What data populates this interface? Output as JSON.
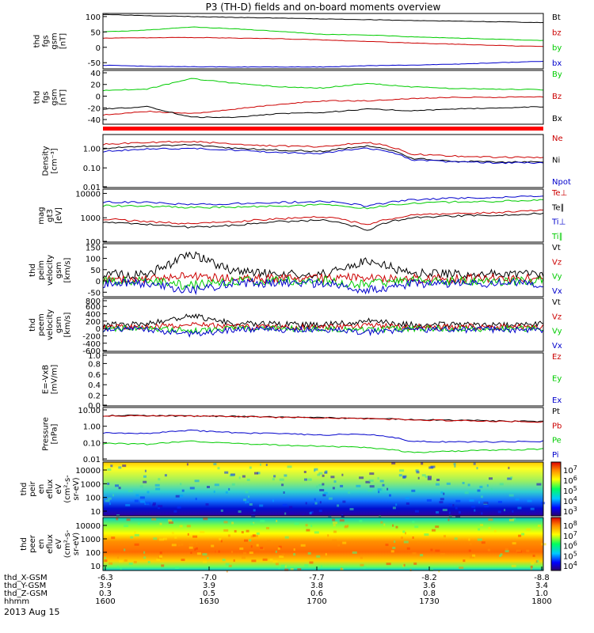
{
  "title": "P3 (TH-D) fields and on-board moments overview",
  "date_label": "2013 Aug 15",
  "chart_data": [
    {
      "type": "line",
      "ylabel": [
        "thd",
        "fgs",
        "gsm",
        "[nT]"
      ],
      "yticks": [
        100,
        50,
        0,
        -50
      ],
      "ylim": [
        -70,
        110
      ],
      "series": [
        {
          "name": "Bt",
          "color": "#000000",
          "values": [
            107,
            103,
            100,
            97,
            95,
            92,
            90,
            87,
            85,
            83,
            80
          ]
        },
        {
          "name": "bz",
          "color": "#cc0000",
          "values": [
            30,
            31,
            32,
            30,
            28,
            24,
            19,
            14,
            10,
            6,
            2
          ]
        },
        {
          "name": "by",
          "color": "#00cc00",
          "values": [
            50,
            56,
            66,
            60,
            52,
            42,
            40,
            34,
            30,
            26,
            22
          ]
        },
        {
          "name": "bx",
          "color": "#0000cc",
          "values": [
            -58,
            -62,
            -63,
            -64,
            -64,
            -64,
            -60,
            -58,
            -55,
            -50,
            -46
          ]
        }
      ]
    },
    {
      "type": "line",
      "ylabel": [
        "thd",
        "fgs",
        "gsm",
        "[nT]"
      ],
      "yticks": [
        40,
        20,
        0,
        -20,
        -40
      ],
      "ylim": [
        -48,
        44
      ],
      "series": [
        {
          "name": "By",
          "color": "#00cc00",
          "values": [
            10,
            12,
            30,
            22,
            16,
            14,
            22,
            16,
            13,
            12,
            11
          ]
        },
        {
          "name": "Bz",
          "color": "#cc0000",
          "values": [
            -32,
            -26,
            -30,
            -22,
            -14,
            -8,
            -8,
            -4,
            -2,
            -2,
            -1
          ]
        },
        {
          "name": "Bx",
          "color": "#000000",
          "values": [
            -22,
            -18,
            -36,
            -36,
            -30,
            -28,
            -22,
            -25,
            -22,
            -20,
            -18
          ]
        }
      ]
    },
    {
      "type": "line",
      "scale": "log",
      "ylabel": [
        "Density",
        "[cm^-3]"
      ],
      "yticks": [
        "1.00",
        "0.10",
        "0.01"
      ],
      "ylim": [
        0.01,
        5
      ],
      "series": [
        {
          "name": "Ne",
          "color": "#cc0000",
          "values": [
            1.6,
            2.0,
            2.2,
            1.6,
            1.3,
            1.2,
            2.0,
            0.5,
            0.4,
            0.35,
            0.35
          ]
        },
        {
          "name": "Ni",
          "color": "#000000",
          "values": [
            1.0,
            1.3,
            1.5,
            1.0,
            0.8,
            0.7,
            1.3,
            0.3,
            0.22,
            0.2,
            0.2
          ]
        },
        {
          "name": "Npot",
          "color": "#0000cc",
          "values": [
            0.7,
            0.9,
            1.0,
            0.8,
            0.6,
            0.55,
            1.0,
            0.25,
            0.2,
            0.18,
            0.18
          ]
        }
      ]
    },
    {
      "type": "line",
      "scale": "log",
      "ylabel": [
        "mag",
        "gt3",
        "[eV]"
      ],
      "yticks": [
        "10000",
        "1000",
        "100"
      ],
      "ylim": [
        100,
        15000
      ],
      "series": [
        {
          "name": "Te⊥",
          "color": "#cc0000",
          "values": [
            900,
            700,
            550,
            700,
            900,
            1100,
            500,
            1300,
            1500,
            1700,
            2000
          ]
        },
        {
          "name": "Te∥",
          "color": "#000000",
          "values": [
            700,
            550,
            400,
            500,
            700,
            800,
            300,
            1000,
            1200,
            1300,
            1500
          ]
        },
        {
          "name": "Ti⊥",
          "color": "#0000cc",
          "values": [
            4500,
            4200,
            3500,
            3800,
            4200,
            4800,
            3000,
            5500,
            6500,
            7000,
            7500
          ]
        },
        {
          "name": "Ti∥",
          "color": "#00cc00",
          "values": [
            3200,
            3000,
            2600,
            2800,
            3000,
            3400,
            2500,
            4000,
            4500,
            4800,
            5200
          ]
        }
      ]
    },
    {
      "type": "line",
      "ylabel": [
        "thd",
        "peim",
        "velocity",
        "gsm",
        "[km/s]"
      ],
      "yticks": [
        150,
        100,
        50,
        0,
        -50
      ],
      "ylim": [
        -70,
        165
      ],
      "series": [
        {
          "name": "Vt",
          "color": "#000000",
          "values": [
            30,
            28,
            120,
            40,
            30,
            30,
            90,
            35,
            30,
            32,
            30
          ]
        },
        {
          "name": "Vz",
          "color": "#cc0000",
          "values": [
            10,
            12,
            20,
            8,
            10,
            12,
            18,
            10,
            10,
            12,
            10
          ]
        },
        {
          "name": "Vy",
          "color": "#00cc00",
          "values": [
            0,
            -2,
            -20,
            0,
            2,
            0,
            -15,
            0,
            0,
            -2,
            0
          ]
        },
        {
          "name": "Vx",
          "color": "#0000cc",
          "values": [
            -10,
            -12,
            -40,
            -10,
            -8,
            -10,
            -40,
            -12,
            -10,
            -12,
            -10
          ]
        }
      ]
    },
    {
      "type": "line",
      "ylabel": [
        "thd",
        "peem",
        "velocity",
        "gsm",
        "[km/s]"
      ],
      "yticks": [
        800,
        600,
        400,
        200,
        0,
        -200,
        -400,
        -600
      ],
      "ylim": [
        -620,
        820
      ],
      "series": [
        {
          "name": "Vt",
          "color": "#000000",
          "values": [
            100,
            110,
            350,
            130,
            110,
            100,
            200,
            100,
            110,
            100,
            120
          ]
        },
        {
          "name": "Vz",
          "color": "#cc0000",
          "values": [
            40,
            50,
            100,
            50,
            40,
            40,
            80,
            40,
            50,
            40,
            50
          ]
        },
        {
          "name": "Vy",
          "color": "#00cc00",
          "values": [
            0,
            -10,
            -60,
            -10,
            0,
            -10,
            -40,
            0,
            -10,
            0,
            -10
          ]
        },
        {
          "name": "Vx",
          "color": "#0000cc",
          "values": [
            -20,
            -30,
            -150,
            -40,
            -30,
            -30,
            -100,
            -30,
            -40,
            -30,
            -40
          ]
        }
      ]
    },
    {
      "type": "line",
      "ylabel": [
        "E=-VxB",
        "[mV/m]"
      ],
      "yticks": [
        "1.0",
        "0.8",
        "0.6",
        "0.4",
        "0.2",
        "0.0"
      ],
      "ylim": [
        0,
        1.0
      ],
      "series": [
        {
          "name": "Ez",
          "color": "#cc0000",
          "values": []
        },
        {
          "name": "Ey",
          "color": "#00cc00",
          "values": []
        },
        {
          "name": "Ex",
          "color": "#0000cc",
          "values": []
        }
      ]
    },
    {
      "type": "line",
      "scale": "log",
      "ylabel": [
        "Pressure",
        "[nPa]"
      ],
      "yticks": [
        "10.00",
        "1.00",
        "0.10",
        "0.01"
      ],
      "ylim": [
        0.008,
        14
      ],
      "series": [
        {
          "name": "Pt",
          "color": "#000000",
          "values": [
            4.5,
            4.5,
            4.3,
            4.0,
            3.6,
            3.3,
            3.0,
            2.6,
            2.3,
            2.1,
            1.9
          ]
        },
        {
          "name": "Pb",
          "color": "#cc0000",
          "values": [
            4.4,
            4.4,
            4.2,
            3.9,
            3.5,
            3.2,
            2.9,
            2.5,
            2.2,
            2.0,
            1.8
          ]
        },
        {
          "name": "Pe",
          "color": "#00cc00",
          "values": [
            0.09,
            0.08,
            0.12,
            0.09,
            0.07,
            0.06,
            0.05,
            0.025,
            0.03,
            0.035,
            0.04
          ]
        },
        {
          "name": "Pi",
          "color": "#0000cc",
          "values": [
            0.4,
            0.35,
            0.55,
            0.4,
            0.35,
            0.3,
            0.32,
            0.12,
            0.11,
            0.11,
            0.12
          ]
        }
      ]
    },
    {
      "type": "heatmap",
      "ylabel": [
        "thd",
        "peir",
        "en",
        "eflux",
        "eV",
        "(cm^2-s-",
        "sr-eV)"
      ],
      "yticks": [
        "10000",
        "1000",
        "100",
        "10"
      ],
      "colorbar_ticks": [
        "10^7",
        "10^6",
        "10^5",
        "10^4",
        "10^3"
      ]
    },
    {
      "type": "heatmap",
      "ylabel": [
        "thd",
        "peer",
        "en",
        "eflux",
        "eV",
        "(cm^2-s-",
        "sr-eV)"
      ],
      "yticks": [
        "10000",
        "1000",
        "100",
        "10"
      ],
      "colorbar_ticks": [
        "10^8",
        "10^7",
        "10^6",
        "10^5",
        "10^4"
      ]
    }
  ],
  "x_axis": {
    "rows": [
      {
        "label": "thd_X-GSM",
        "values": [
          "-6.3",
          "-7.0",
          "-7.7",
          "-8.2",
          "-8.8"
        ]
      },
      {
        "label": "thd_Y-GSM",
        "values": [
          "3.9",
          "3.9",
          "3.8",
          "3.6",
          "3.4"
        ]
      },
      {
        "label": "thd_Z-GSM",
        "values": [
          "0.3",
          "0.5",
          "0.6",
          "0.8",
          "1.0"
        ]
      },
      {
        "label": "hhmm",
        "values": [
          "1600",
          "1630",
          "1700",
          "1730",
          "1800"
        ]
      }
    ]
  }
}
